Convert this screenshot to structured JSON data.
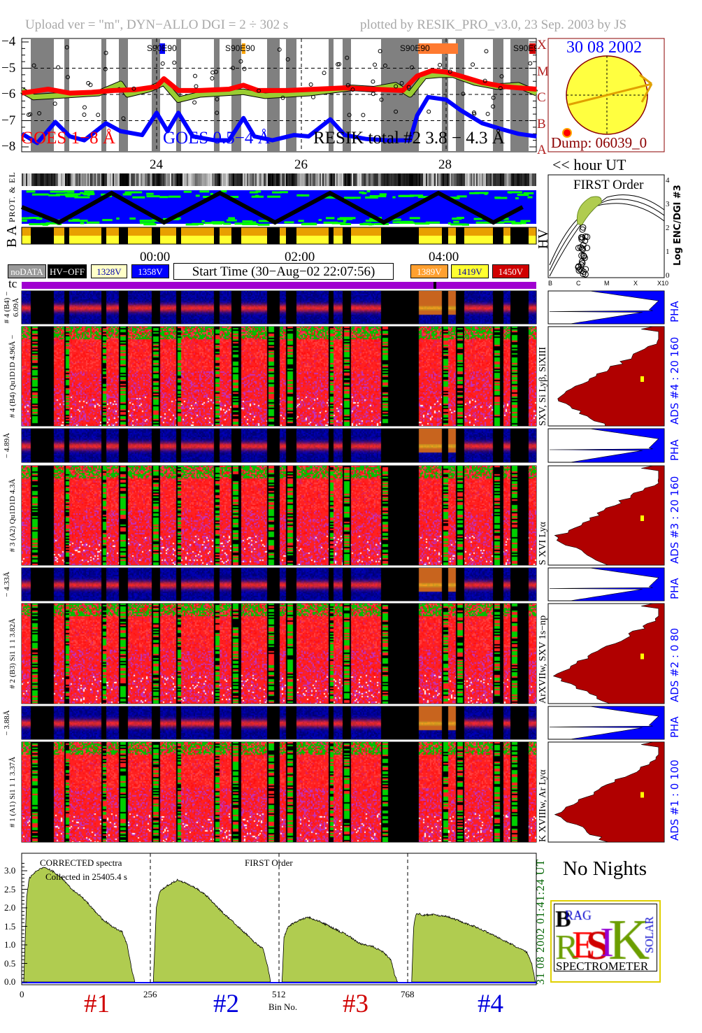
{
  "header": {
    "upload_info": "Upload ver = \"m\", DYN−ALLO DGI =   2 ÷ 302 s",
    "plotted_by": "plotted by RESIK_PRO_v3.0, 23 Sep. 2003 by JS"
  },
  "lightcurve": {
    "y_ticks": [
      "−4",
      "−5",
      "−6",
      "−7",
      "−8"
    ],
    "class_letters": [
      "A",
      "B",
      "C",
      "M",
      "X"
    ],
    "x_ticks": [
      "24",
      "26",
      "28"
    ],
    "axis_label": "<< hour UT",
    "legend": {
      "goes_long": "GOES 1−8 Å",
      "goes_short": "GOES 0.5−4 Å",
      "resik": "RESIK total #2  3.8 − 4.3 Å"
    },
    "markers": [
      {
        "label": "S90E90",
        "color": "#0000ff"
      },
      {
        "label": "S90E90",
        "color": "#ffa500"
      },
      {
        "label": "S90E90",
        "color": "#ff7a30"
      },
      {
        "label": "S90E90",
        "color": "#d00000"
      }
    ],
    "colors": {
      "goes_long": "#ff0000",
      "goes_short": "#0000ff",
      "resik": "#9acd32",
      "night": "#808080"
    }
  },
  "sun": {
    "date": "30 08 2002",
    "dump": "Dump: 06039_0"
  },
  "strips": {
    "prot_el_label": "PROT. & EL",
    "ba_label": "B A",
    "hv_label": "HV",
    "time_ticks": [
      "00:00",
      "02:00",
      "04:00"
    ],
    "tc_label": "tc"
  },
  "legend_boxes": [
    {
      "label": "noDATA",
      "bg": "#999999",
      "fg": "#ffffff"
    },
    {
      "label": "HV−OFF",
      "bg": "#000000",
      "fg": "#ffffff"
    },
    {
      "label": "1328V",
      "bg": "#ffffc8",
      "fg": "#0000aa"
    },
    {
      "label": "1358V",
      "bg": "#0000ff",
      "fg": "#ffffff"
    },
    {
      "label": "1389V",
      "bg": "#ffa030",
      "fg": "#ffffff"
    },
    {
      "label": "1419V",
      "bg": "#ffff30",
      "fg": "#0000aa"
    },
    {
      "label": "1450V",
      "bg": "#d00000",
      "fg": "#ffffff"
    }
  ],
  "start_time": "Start Time (30−Aug−02 22:07:56)",
  "first_order_inset": {
    "title": "FIRST Order",
    "y_label": "Log ENC/DGI #3",
    "y_ticks": [
      "0",
      "1",
      "2",
      "3",
      "4"
    ],
    "x_ticks": [
      "B",
      "C",
      "M",
      "X",
      "X10"
    ]
  },
  "channels": [
    {
      "pha_label": "# 4 (B4) − 6.09Å",
      "spec_label": "# 4 (B4) Qu1D1D 4.96Å −",
      "lines": "SXV, Si Lyβ, SiXIII",
      "ads": "ADS #4 :   20 160",
      "pha": "PHA"
    },
    {
      "pha_label": "− 4.89Å",
      "spec_label": "# 3 (A2) Qu1D1D 4.3Å",
      "lines": "S XVI Lyα",
      "ads": "ADS #3 :   20 160",
      "pha": "PHA"
    },
    {
      "pha_label": "− 4.33Å",
      "spec_label": "# 2 (B3) Si1 1 1  3.82Å",
      "lines": "ArXVIIw, SXV 1s−np",
      "ads": "ADS #2 :    0  80",
      "pha": "PHA"
    },
    {
      "pha_label": "− 3.88Å",
      "spec_label": "# 1 (A1) Si1 1 1  3.37Å",
      "lines": "K XVIIIw, Ar Lyα",
      "ads": "ADS #1 :    0 100",
      "pha": "PHA"
    }
  ],
  "spectrum": {
    "label1": "CORRECTED spectra",
    "label2": "Collected in 25405.4 s",
    "order": "FIRST Order",
    "x_ticks": [
      "0",
      "256",
      "512",
      "768"
    ],
    "x_label": "Bin No.",
    "y_ticks": [
      "0.0",
      "0.5",
      "1.0",
      "1.5",
      "2.0",
      "2.5",
      "3.0"
    ],
    "segment_labels": [
      {
        "label": "#1",
        "color": "#d00000"
      },
      {
        "label": "#2",
        "color": "#0000dd"
      },
      {
        "label": "#3",
        "color": "#d00000"
      },
      {
        "label": "#4",
        "color": "#0000dd"
      }
    ],
    "date_stamp": "31 08 2002   01:41:24 UT"
  },
  "no_nights": "No Nights",
  "logo": {
    "text": "BRAGG RESIK SOLAR SPECTROMETER",
    "bottom": "SPECTROMETER"
  },
  "chart_data": [
    {
      "type": "line",
      "title": "",
      "xlabel": "hour UT",
      "ylabel": "",
      "xlim": [
        22.13,
        29.25
      ],
      "ylim": [
        -8.2,
        -3.9
      ],
      "grid": "dashed at -5, -6, -7",
      "series": [
        {
          "name": "GOES 1−8 Å",
          "x": [
            22.14,
            22.5,
            22.8,
            23.1,
            23.4,
            23.7,
            24.0,
            24.1,
            24.3,
            24.6,
            25.0,
            25.2,
            25.4,
            25.8,
            26.2,
            26.6,
            27.0,
            27.4,
            27.6,
            27.8,
            28.0,
            28.2,
            28.5,
            28.8,
            29.0,
            29.25
          ],
          "y": [
            -5.95,
            -5.8,
            -5.95,
            -5.92,
            -5.85,
            -5.82,
            -5.7,
            -5.4,
            -5.85,
            -5.85,
            -5.8,
            -5.65,
            -5.85,
            -5.85,
            -5.8,
            -5.75,
            -5.8,
            -5.85,
            -5.3,
            -5.1,
            -5.15,
            -5.3,
            -5.55,
            -5.7,
            -5.75,
            -5.8
          ]
        },
        {
          "name": "GOES 0.5−4 Å",
          "x": [
            22.14,
            22.35,
            22.6,
            22.8,
            23.0,
            23.3,
            23.5,
            23.8,
            24.0,
            24.15,
            24.3,
            24.5,
            24.8,
            25.0,
            25.2,
            25.35,
            25.6,
            25.9,
            26.1,
            26.4,
            26.6,
            26.9,
            27.2,
            27.5,
            27.6,
            27.75,
            28.0,
            28.2,
            28.5,
            28.8,
            29.0,
            29.25
          ],
          "y": [
            -7.5,
            -7.85,
            -7.05,
            -7.6,
            -7.75,
            -7.1,
            -7.4,
            -7.55,
            -6.7,
            -7.4,
            -6.7,
            -7.6,
            -7.75,
            -7.75,
            -6.9,
            -7.6,
            -7.75,
            -7.55,
            -7.6,
            -6.95,
            -7.55,
            -7.7,
            -7.75,
            -7.75,
            -6.8,
            -6.1,
            -6.2,
            -6.6,
            -7.1,
            -7.35,
            -7.5,
            -7.6
          ]
        },
        {
          "name": "RESIK total #2  3.8 − 4.3 Å",
          "x": [
            22.14,
            22.3,
            22.6,
            22.9,
            23.2,
            23.5,
            23.6,
            23.9,
            24.1,
            24.3,
            24.6,
            24.9,
            25.2,
            25.5,
            25.8,
            26.1,
            26.4,
            26.7,
            27.0,
            27.3,
            27.5,
            27.7,
            27.9,
            28.1,
            28.4,
            28.7,
            29.0,
            29.25
          ],
          "y": [
            -5.85,
            -6.1,
            -6.05,
            -6.0,
            -5.95,
            -5.6,
            -6.0,
            -5.8,
            -5.55,
            -6.2,
            -6.0,
            -5.95,
            -5.9,
            -6.05,
            -6.0,
            -5.95,
            -5.85,
            -5.75,
            -5.8,
            -5.65,
            -6.0,
            -5.3,
            -5.25,
            -5.25,
            -5.55,
            -5.7,
            -5.65,
            -5.95
          ]
        }
      ]
    },
    {
      "type": "area",
      "title": "",
      "xlabel": "Bin No.",
      "ylabel": "",
      "xlim": [
        0,
        1024
      ],
      "ylim": [
        0,
        3.4
      ],
      "series": [
        {
          "name": "#1",
          "x": [
            4,
            10,
            15,
            30,
            45,
            60,
            80,
            100,
            120,
            140,
            160,
            180,
            200,
            210,
            218,
            225
          ],
          "y": [
            0,
            2.3,
            2.8,
            3.0,
            3.1,
            3.0,
            2.8,
            2.5,
            2.3,
            2.0,
            1.7,
            1.5,
            1.35,
            1.0,
            0.4,
            0
          ]
        },
        {
          "name": "#2",
          "x": [
            262,
            268,
            275,
            290,
            310,
            330,
            350,
            370,
            390,
            410,
            430,
            450,
            465,
            480,
            490,
            495
          ],
          "y": [
            0,
            2.0,
            2.45,
            2.6,
            2.75,
            2.65,
            2.5,
            2.3,
            2.0,
            1.75,
            1.5,
            1.25,
            1.05,
            0.9,
            0.4,
            0
          ]
        },
        {
          "name": "#3",
          "x": [
            518,
            522,
            530,
            550,
            570,
            590,
            620,
            650,
            670,
            700,
            720,
            735,
            742,
            748
          ],
          "y": [
            0,
            1.2,
            1.5,
            1.65,
            1.75,
            1.65,
            1.45,
            1.25,
            1.05,
            0.95,
            0.8,
            0.6,
            0.2,
            0
          ]
        },
        {
          "name": "#4",
          "x": [
            776,
            780,
            785,
            800,
            820,
            850,
            880,
            910,
            940,
            970,
            990,
            1005,
            1015,
            1022
          ],
          "y": [
            0,
            1.5,
            1.85,
            1.8,
            1.82,
            1.75,
            1.6,
            1.45,
            1.25,
            1.05,
            0.9,
            0.8,
            0.5,
            0
          ]
        }
      ]
    }
  ]
}
